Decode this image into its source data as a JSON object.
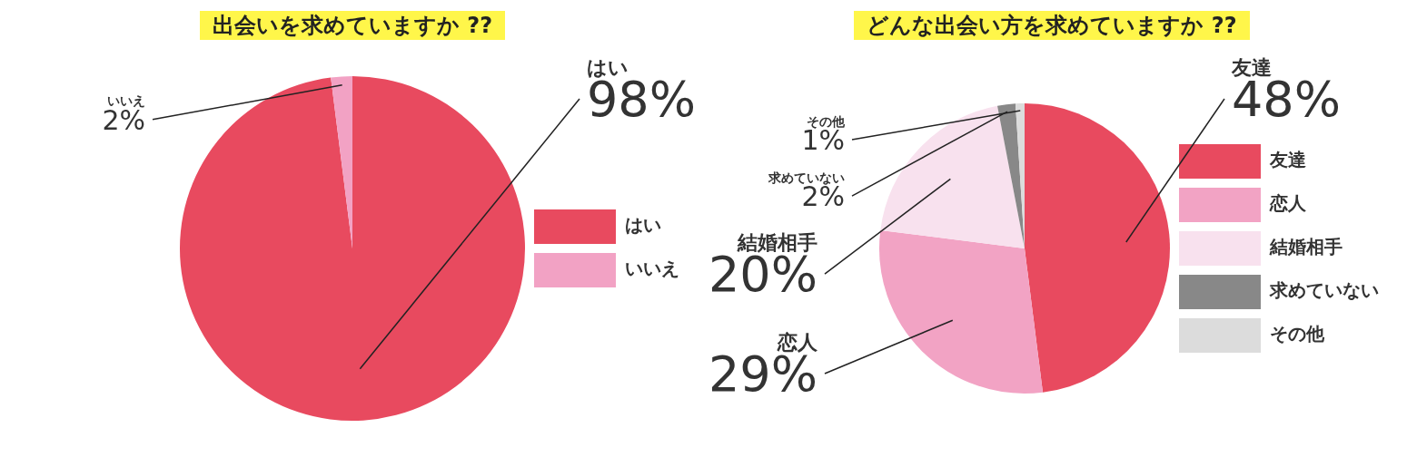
{
  "chart_data": [
    {
      "type": "pie",
      "title": "出会いを求めていますか ??",
      "categories": [
        "はい",
        "いいえ"
      ],
      "values": [
        98,
        2
      ],
      "colors": [
        "#e84a5f",
        "#f2a2c4"
      ],
      "value_labels": [
        "98%",
        "2%"
      ],
      "legend": "right"
    },
    {
      "type": "pie",
      "title": "どんな出会い方を求めていますか ??",
      "categories": [
        "友達",
        "恋人",
        "結婚相手",
        "求めていない",
        "その他"
      ],
      "values": [
        48,
        29,
        20,
        2,
        1
      ],
      "colors": [
        "#e84a5f",
        "#f2a3c4",
        "#f8e1ee",
        "#888888",
        "#dcdcdc"
      ],
      "value_labels": [
        "48%",
        "29%",
        "20%",
        "2%",
        "1%"
      ],
      "legend": "right"
    }
  ]
}
